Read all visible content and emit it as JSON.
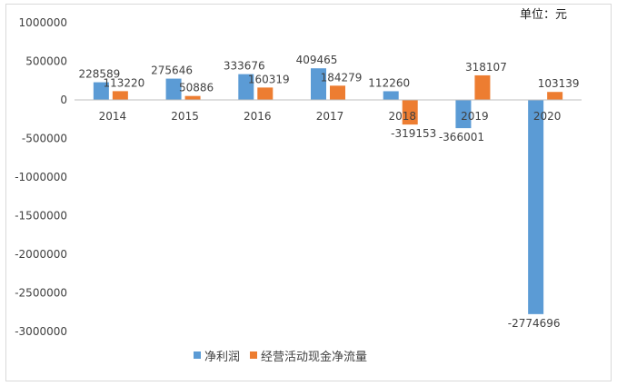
{
  "chart_data": {
    "type": "bar",
    "unit_label": "单位：元",
    "categories": [
      "2014",
      "2015",
      "2016",
      "2017",
      "2018",
      "2019",
      "2020"
    ],
    "series": [
      {
        "name": "净利润",
        "color": "#5b9bd5",
        "values": [
          228589,
          275646,
          333676,
          409465,
          112260,
          -366001,
          -2774696
        ]
      },
      {
        "name": "经营活动现金净流量",
        "color": "#ed7d31",
        "values": [
          113220,
          50886,
          160319,
          184279,
          -319153,
          318107,
          103139
        ]
      }
    ],
    "ylim": [
      -3000000,
      1000000
    ],
    "yticks": [
      "1000000",
      "500000",
      "0",
      "-500000",
      "-1000000",
      "-1500000",
      "-2000000",
      "-2500000",
      "-3000000"
    ],
    "legend_position": "bottom"
  }
}
